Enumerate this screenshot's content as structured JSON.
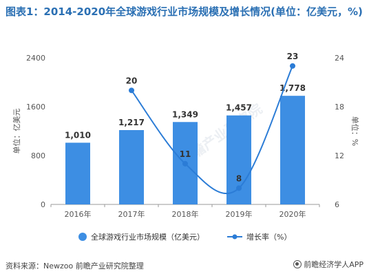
{
  "title": "图表1：2014-2020年全球游戏行业市场规模及增长情况(单位：亿美元，%)",
  "source": "资料来源：Newzoo 前瞻产业研究院整理",
  "brand": "前瞻经济学人APP",
  "watermark": "前瞻产业研究院",
  "colors": {
    "bar": "#3d8ee3",
    "line": "#2b7cd6",
    "axis_text": "#555555",
    "title": "#2a6fb3"
  },
  "chart_data": {
    "type": "bar",
    "categories": [
      "2016年",
      "2017年",
      "2018年",
      "2019年",
      "2020年"
    ],
    "series": [
      {
        "name": "全球游戏行业市场规模（亿美元）",
        "type": "bar",
        "axis": "left",
        "values": [
          1010,
          1217,
          1349,
          1457,
          1778
        ],
        "labels": [
          "1,010",
          "1,217",
          "1,349",
          "1,457",
          "1,778"
        ]
      },
      {
        "name": "增长率（%）",
        "type": "line",
        "axis": "right",
        "values": [
          null,
          20,
          11,
          8,
          23
        ],
        "labels": [
          "",
          "20",
          "11",
          "8",
          "23"
        ]
      }
    ],
    "ylabel_left": "单位：亿美元",
    "ylabel_right": "单位：%",
    "ylim_left": [
      0,
      2400
    ],
    "ylim_right": [
      6,
      24
    ],
    "yticks_left": [
      "0",
      "800",
      "1600",
      "2400"
    ],
    "yticks_right": [
      "6",
      "12",
      "18",
      "24"
    ],
    "grid": false,
    "legend_position": "bottom"
  }
}
